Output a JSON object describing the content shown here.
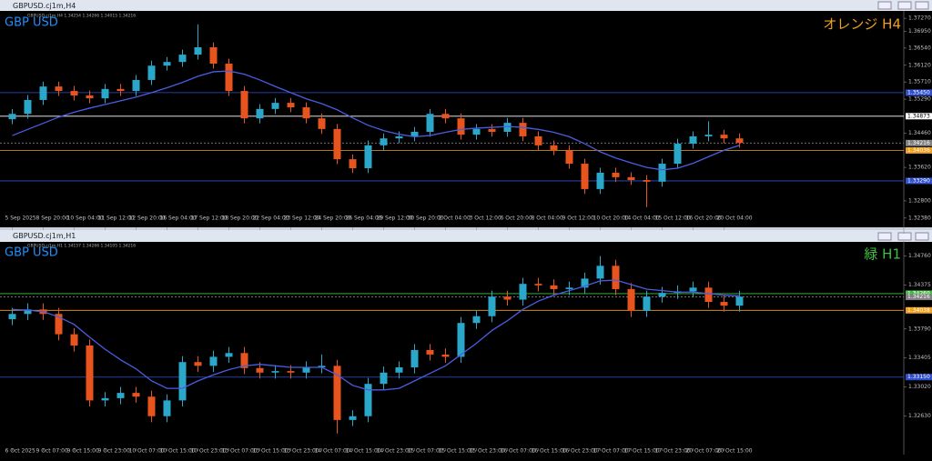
{
  "chart_data": [
    {
      "type": "candlestick",
      "window_title": "GBPUSD.cj1m,H4",
      "info": "GBPUSD.cj1m,H4 1.34254 1.34266 1.34015 1.34216",
      "symbol_label": "GBP USD",
      "timeframe_label": "オレンジ H4",
      "timeframe_color": "#f0a020",
      "categories": [
        "5 Sep 2025",
        null,
        "8 Sep 20:00",
        null,
        "10 Sep 04:00",
        null,
        "11 Sep 12:00",
        null,
        "12 Sep 20:00",
        null,
        "16 Sep 04:00",
        null,
        "17 Sep 12:00",
        null,
        "18 Sep 20:00",
        null,
        "22 Sep 04:00",
        null,
        "23 Sep 12:00",
        null,
        "24 Sep 20:00",
        null,
        "26 Sep 04:00",
        null,
        "29 Sep 12:00",
        null,
        "30 Sep 20:00",
        null,
        "2 Oct 04:00",
        null,
        "3 Oct 12:00",
        null,
        "6 Oct 20:00",
        null,
        "8 Oct 04:00",
        null,
        "9 Oct 12:00",
        null,
        "10 Oct 20:00",
        null,
        "14 Oct 04:00",
        null,
        "15 Oct 12:00",
        null,
        "16 Oct 20:00",
        null,
        "20 Oct 04:00",
        null
      ],
      "open": [
        1.348,
        1.3493,
        1.3527,
        1.356,
        1.3549,
        1.3538,
        1.3531,
        1.3554,
        1.3549,
        1.3576,
        1.3611,
        1.362,
        1.3638,
        1.3656,
        1.3616,
        1.3549,
        1.3482,
        1.3505,
        1.352,
        1.3509,
        1.3482,
        1.3456,
        1.3382,
        1.336,
        1.3416,
        1.3433,
        1.3438,
        1.3449,
        1.3493,
        1.3482,
        1.3442,
        1.3456,
        1.3449,
        1.3471,
        1.3438,
        1.3416,
        1.3404,
        1.3371,
        1.3309,
        1.3349,
        1.3338,
        1.3331,
        1.3327,
        1.3371,
        1.342,
        1.3438,
        1.3442,
        1.3433
      ],
      "high": [
        1.3505,
        1.3539,
        1.3572,
        1.3572,
        1.3561,
        1.355,
        1.3566,
        1.3566,
        1.3588,
        1.3623,
        1.3632,
        1.365,
        1.3712,
        1.3668,
        1.3628,
        1.3561,
        1.3517,
        1.3532,
        1.3532,
        1.3521,
        1.3494,
        1.3468,
        1.3394,
        1.3428,
        1.3445,
        1.345,
        1.3461,
        1.3505,
        1.3505,
        1.3494,
        1.3468,
        1.3468,
        1.3483,
        1.3483,
        1.345,
        1.3428,
        1.3416,
        1.3383,
        1.3361,
        1.3361,
        1.335,
        1.3343,
        1.3383,
        1.3432,
        1.345,
        1.3475,
        1.3454,
        1.3445
      ],
      "low": [
        1.3468,
        1.3481,
        1.3515,
        1.3537,
        1.3526,
        1.3519,
        1.3519,
        1.3537,
        1.3537,
        1.3564,
        1.3599,
        1.3608,
        1.3626,
        1.3604,
        1.3537,
        1.347,
        1.347,
        1.3493,
        1.3497,
        1.347,
        1.3444,
        1.337,
        1.3348,
        1.3348,
        1.3404,
        1.3421,
        1.3426,
        1.3437,
        1.347,
        1.343,
        1.343,
        1.3437,
        1.3437,
        1.3426,
        1.3404,
        1.3392,
        1.3359,
        1.3297,
        1.3297,
        1.3326,
        1.3319,
        1.3265,
        1.3315,
        1.3359,
        1.3408,
        1.3426,
        1.3421,
        1.341
      ],
      "close": [
        1.3493,
        1.3527,
        1.356,
        1.3549,
        1.3538,
        1.3531,
        1.3554,
        1.3549,
        1.3576,
        1.3611,
        1.362,
        1.3638,
        1.3656,
        1.3616,
        1.3549,
        1.3482,
        1.3505,
        1.352,
        1.3509,
        1.3482,
        1.3456,
        1.3382,
        1.336,
        1.3416,
        1.3433,
        1.3438,
        1.3449,
        1.3493,
        1.3482,
        1.3442,
        1.3456,
        1.3449,
        1.3471,
        1.3438,
        1.3416,
        1.3404,
        1.3371,
        1.3309,
        1.3349,
        1.3338,
        1.3331,
        1.3327,
        1.3371,
        1.342,
        1.3438,
        1.3442,
        1.3433,
        1.3422
      ],
      "ma": [
        1.344,
        1.3455,
        1.347,
        1.3485,
        1.3497,
        1.3507,
        1.3516,
        1.3525,
        1.3534,
        1.3545,
        1.3557,
        1.357,
        1.3585,
        1.3596,
        1.3598,
        1.359,
        1.3576,
        1.356,
        1.3545,
        1.353,
        1.3518,
        1.3503,
        1.3483,
        1.3465,
        1.3452,
        1.3443,
        1.3437,
        1.344,
        1.3448,
        1.3455,
        1.3458,
        1.346,
        1.3462,
        1.346,
        1.3455,
        1.3448,
        1.3437,
        1.342,
        1.34,
        1.3385,
        1.3373,
        1.3362,
        1.3356,
        1.336,
        1.3372,
        1.3388,
        1.3404,
        1.3416
      ],
      "ylim": [
        1.3222,
        1.3745
      ],
      "yticks": [
        {
          "value": 1.3727,
          "label": "1.37270"
        },
        {
          "value": 1.3695,
          "label": "1.36950"
        },
        {
          "value": 1.3654,
          "label": "1.36540"
        },
        {
          "value": 1.3612,
          "label": "1.36120"
        },
        {
          "value": 1.3571,
          "label": "1.35710"
        },
        {
          "value": 1.3529,
          "label": "1.35290"
        },
        {
          "value": 1.3446,
          "label": "1.34460"
        },
        {
          "value": 1.3362,
          "label": "1.33620"
        },
        {
          "value": 1.328,
          "label": "1.32800"
        },
        {
          "value": 1.3238,
          "label": "1.32380"
        }
      ],
      "levels": [
        {
          "value": 1.3545,
          "label": "1.35450",
          "color": "#3050d0"
        },
        {
          "value": 1.34873,
          "label": "1.34873",
          "color": "#ffffff"
        },
        {
          "value": 1.34216,
          "label": "1.34216",
          "color": "#808080"
        },
        {
          "value": 1.34036,
          "label": "1.34036",
          "color": "#f0a020"
        },
        {
          "value": 1.3329,
          "label": "1.33290",
          "color": "#3050d0"
        }
      ]
    },
    {
      "type": "candlestick",
      "window_title": "GBPUSD.cj1m,H1",
      "info": "GBPUSD.cj1m,H1 1.34157 1.34266 1.34105 1.34216",
      "symbol_label": "GBP USD",
      "timeframe_label": "緑 H1",
      "timeframe_color": "#40c040",
      "categories": [
        "6 Oct 2025",
        null,
        "9 Oct 07:00",
        null,
        "9 Oct 15:00",
        null,
        "9 Oct 23:00",
        null,
        "10 Oct 07:00",
        null,
        "10 Oct 15:00",
        null,
        "10 Oct 23:00",
        null,
        "13 Oct 07:00",
        null,
        "13 Oct 15:00",
        null,
        "13 Oct 23:00",
        null,
        "14 Oct 07:00",
        null,
        "14 Oct 15:00",
        null,
        "14 Oct 23:00",
        null,
        "15 Oct 07:00",
        null,
        "15 Oct 15:00",
        null,
        "15 Oct 23:00",
        null,
        "16 Oct 07:00",
        null,
        "16 Oct 15:00",
        null,
        "16 Oct 23:00",
        null,
        "17 Oct 07:00",
        null,
        "17 Oct 15:00",
        null,
        "17 Oct 23:00",
        null,
        "20 Oct 07:00",
        null,
        "20 Oct 15:00",
        null
      ],
      "open": [
        1.3392,
        1.3399,
        1.3405,
        1.3399,
        1.3372,
        1.3357,
        1.3284,
        1.3287,
        1.3294,
        1.3289,
        1.3263,
        1.3284,
        1.3335,
        1.333,
        1.3342,
        1.3347,
        1.3327,
        1.3321,
        1.3323,
        1.3321,
        1.3328,
        1.333,
        1.3258,
        1.3263,
        1.3306,
        1.3321,
        1.3328,
        1.3351,
        1.3345,
        1.3342,
        1.3387,
        1.3396,
        1.3422,
        1.3418,
        1.3439,
        1.3437,
        1.3432,
        1.3434,
        1.3446,
        1.3463,
        1.3432,
        1.3403,
        1.3422,
        1.3427,
        1.3429,
        1.3434,
        1.3415,
        1.341
      ],
      "high": [
        1.3407,
        1.3413,
        1.3413,
        1.3407,
        1.338,
        1.3365,
        1.3295,
        1.3302,
        1.3302,
        1.3297,
        1.3292,
        1.3343,
        1.3343,
        1.335,
        1.3355,
        1.3355,
        1.3335,
        1.3331,
        1.3331,
        1.3336,
        1.3345,
        1.3338,
        1.3271,
        1.3314,
        1.3329,
        1.3336,
        1.3359,
        1.3359,
        1.3353,
        1.3395,
        1.3404,
        1.343,
        1.343,
        1.3447,
        1.3447,
        1.3445,
        1.3442,
        1.3454,
        1.3476,
        1.3471,
        1.344,
        1.343,
        1.3435,
        1.3437,
        1.3442,
        1.3442,
        1.3423,
        1.343
      ],
      "low": [
        1.3384,
        1.3391,
        1.3391,
        1.3364,
        1.3349,
        1.3276,
        1.3276,
        1.3279,
        1.3281,
        1.3255,
        1.3255,
        1.3276,
        1.3322,
        1.3322,
        1.3334,
        1.3319,
        1.3313,
        1.3313,
        1.3313,
        1.3313,
        1.332,
        1.324,
        1.325,
        1.3255,
        1.3298,
        1.3313,
        1.332,
        1.3337,
        1.3334,
        1.3334,
        1.3379,
        1.3388,
        1.341,
        1.341,
        1.3429,
        1.3424,
        1.3424,
        1.3426,
        1.3438,
        1.3424,
        1.3395,
        1.3395,
        1.3414,
        1.3419,
        1.3421,
        1.3407,
        1.3402,
        1.3402
      ],
      "close": [
        1.3399,
        1.3405,
        1.3399,
        1.3372,
        1.3357,
        1.3284,
        1.3287,
        1.3294,
        1.3289,
        1.3263,
        1.3284,
        1.3335,
        1.333,
        1.3342,
        1.3347,
        1.3327,
        1.3321,
        1.3323,
        1.3321,
        1.3328,
        1.333,
        1.3258,
        1.3263,
        1.3306,
        1.3321,
        1.3328,
        1.3351,
        1.3345,
        1.3342,
        1.3387,
        1.3396,
        1.3422,
        1.3418,
        1.3439,
        1.3437,
        1.3432,
        1.3434,
        1.3446,
        1.3463,
        1.3432,
        1.3403,
        1.3422,
        1.3427,
        1.3429,
        1.3434,
        1.3415,
        1.341,
        1.3422
      ],
      "ma": [
        1.3405,
        1.3404,
        1.3402,
        1.3395,
        1.3385,
        1.3368,
        1.3352,
        1.3338,
        1.3326,
        1.331,
        1.33,
        1.33,
        1.331,
        1.3318,
        1.3325,
        1.333,
        1.3332,
        1.333,
        1.3328,
        1.3328,
        1.3328,
        1.3318,
        1.3304,
        1.3298,
        1.3298,
        1.33,
        1.331,
        1.332,
        1.333,
        1.3345,
        1.336,
        1.3377,
        1.339,
        1.3405,
        1.3416,
        1.3424,
        1.343,
        1.3436,
        1.3443,
        1.3444,
        1.3438,
        1.3432,
        1.343,
        1.3428,
        1.3428,
        1.3426,
        1.3424,
        1.3423
      ],
      "ylim": [
        1.3224,
        1.349
      ],
      "yticks": [
        {
          "value": 1.3476,
          "label": "1.34760"
        },
        {
          "value": 1.34375,
          "label": "1.34375"
        },
        {
          "value": 1.3379,
          "label": "1.33790"
        },
        {
          "value": 1.33405,
          "label": "1.33405"
        },
        {
          "value": 1.3302,
          "label": "1.33020"
        },
        {
          "value": 1.3263,
          "label": "1.32630"
        }
      ],
      "levels": [
        {
          "value": 1.3426,
          "label": "1.34260",
          "color": "#40c040"
        },
        {
          "value": 1.34216,
          "label": "1.34216",
          "color": "#808080"
        },
        {
          "value": 1.34038,
          "label": "1.34038",
          "color": "#f0a020"
        },
        {
          "value": 1.3315,
          "label": "1.33150",
          "color": "#3050d0"
        }
      ]
    }
  ]
}
